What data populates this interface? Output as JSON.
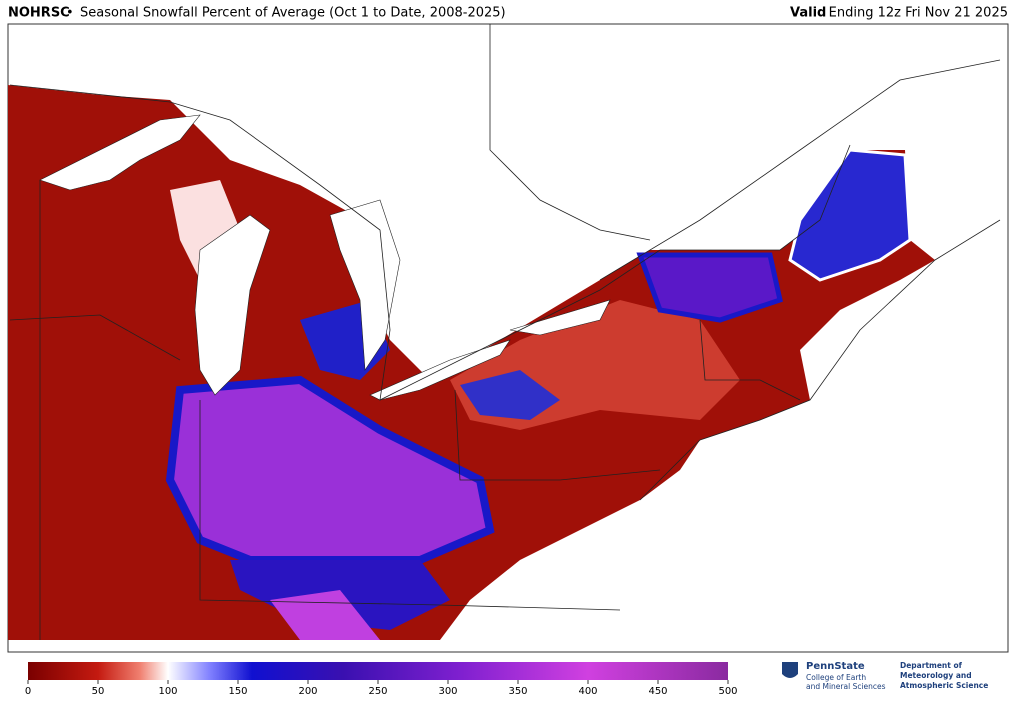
{
  "header": {
    "source": "NOHRSC",
    "separator": "•",
    "title": "Seasonal Snowfall Percent of Average (Oct 1 to Date, 2008-2025)",
    "valid_label": "Valid",
    "valid_time": "Ending 12z Fri Nov 21 2025"
  },
  "colorbar": {
    "range": [
      0,
      500
    ],
    "ticks": [
      0,
      50,
      100,
      150,
      200,
      250,
      300,
      350,
      400,
      450,
      500
    ]
  },
  "logos": {
    "university": "PennState",
    "college_line1": "College of Earth",
    "college_line2": "and Mineral Sciences",
    "dept_line1": "Department of",
    "dept_line2": "Meteorology and",
    "dept_line3": "Atmospheric Science"
  }
}
